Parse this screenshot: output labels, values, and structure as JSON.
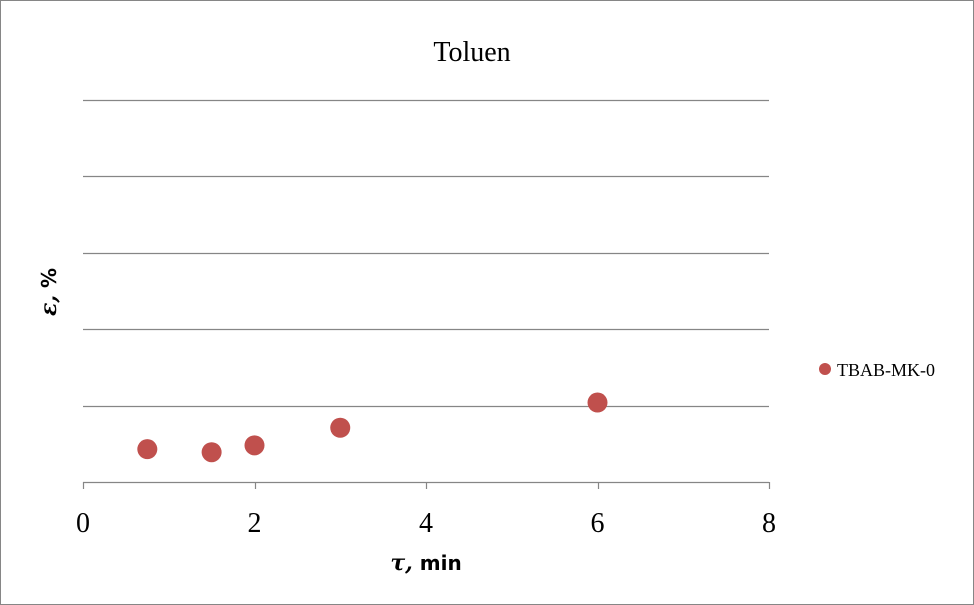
{
  "chart_data": {
    "type": "scatter",
    "title": "Toluen",
    "xlabel_symbol": "τ,",
    "xlabel_unit": " min",
    "ylabel_symbol": "ε,",
    "ylabel_unit": " %",
    "xlim": [
      0,
      8
    ],
    "xticks": [
      0,
      2,
      4,
      6,
      8
    ],
    "ylim": [
      0,
      5
    ],
    "gridlines_y": [
      1,
      2,
      3,
      4,
      5
    ],
    "grid": true,
    "legend_position": "right",
    "series": [
      {
        "name": "TBAB-MK-0",
        "color": "#c0504d",
        "marker": "circle",
        "x": [
          0.75,
          1.5,
          2,
          3,
          6
        ],
        "y": [
          0.43,
          0.39,
          0.48,
          0.71,
          1.04
        ]
      }
    ]
  },
  "colors": {
    "gridline": "#868686",
    "axis": "#868686",
    "frame": "#868686",
    "marker": "#c0504d"
  }
}
